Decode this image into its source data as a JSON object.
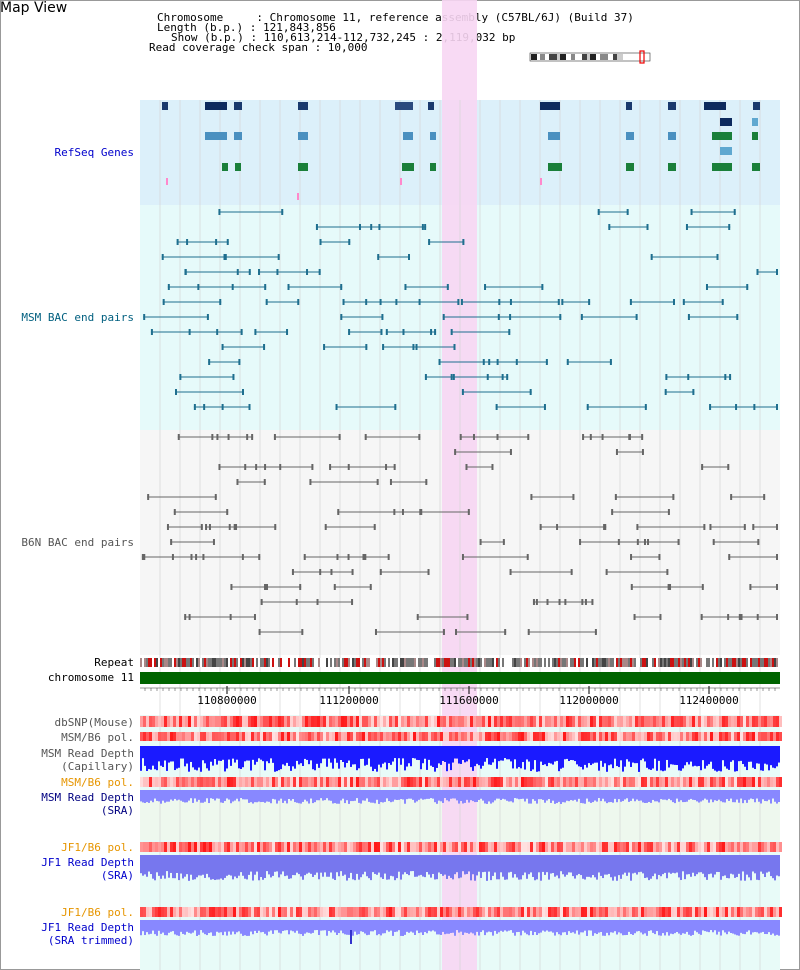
{
  "page": {
    "title": "Map View"
  },
  "header": {
    "chromosome_line": "Chromosome     : Chromosome 11, reference assembly (C57BL/6J) (Build 37)",
    "length_line": "Length (b.p.) : 121,843,856",
    "show_line": "Show (b.p.) : 110,613,214-112,732,245 : 2,119,032 bp",
    "coverage_line": "Read coverage check span : 10,000"
  },
  "tracks": {
    "refseq": "RefSeq Genes",
    "msm_bac": "MSM BAC end pairs",
    "b6n_bac": "B6N BAC end pairs",
    "repeat": "Repeat",
    "chromosome": "chromosome 11",
    "dbsnp": "dbSNP(Mouse)",
    "msm_b6_pol_1": "MSM/B6 pol.",
    "msm_read_depth_cap": "MSM Read Depth",
    "capillary": "(Capillary)",
    "msm_b6_pol_2": "MSM/B6 pol.",
    "msm_read_depth_sra": "MSM Read Depth",
    "sra_1": "(SRA)",
    "jf1_b6_pol_1": "JF1/B6 pol.",
    "jf1_read_depth": "JF1 Read Depth",
    "sra_2": "(SRA)",
    "jf1_b6_pol_2": "JF1/B6 pol.",
    "jf1_read_depth_trim": "JF1 Read Depth",
    "sra_trimmed": "(SRA trimmed)"
  },
  "axis": {
    "ticks": [
      "110800000",
      "111200000",
      "111600000",
      "112000000",
      "112400000"
    ]
  },
  "colors": {
    "refseq_bg": "#dcf0fa",
    "msm_bg": "#e6fafa",
    "b6n_bg": "#f6f6f6",
    "highlight": "#f7d6f3",
    "chromosome_bar": "#006400",
    "depth_blue": "#1a1aff",
    "depth_light": "#8888ff",
    "pol_red": "#ff3b3b"
  }
}
